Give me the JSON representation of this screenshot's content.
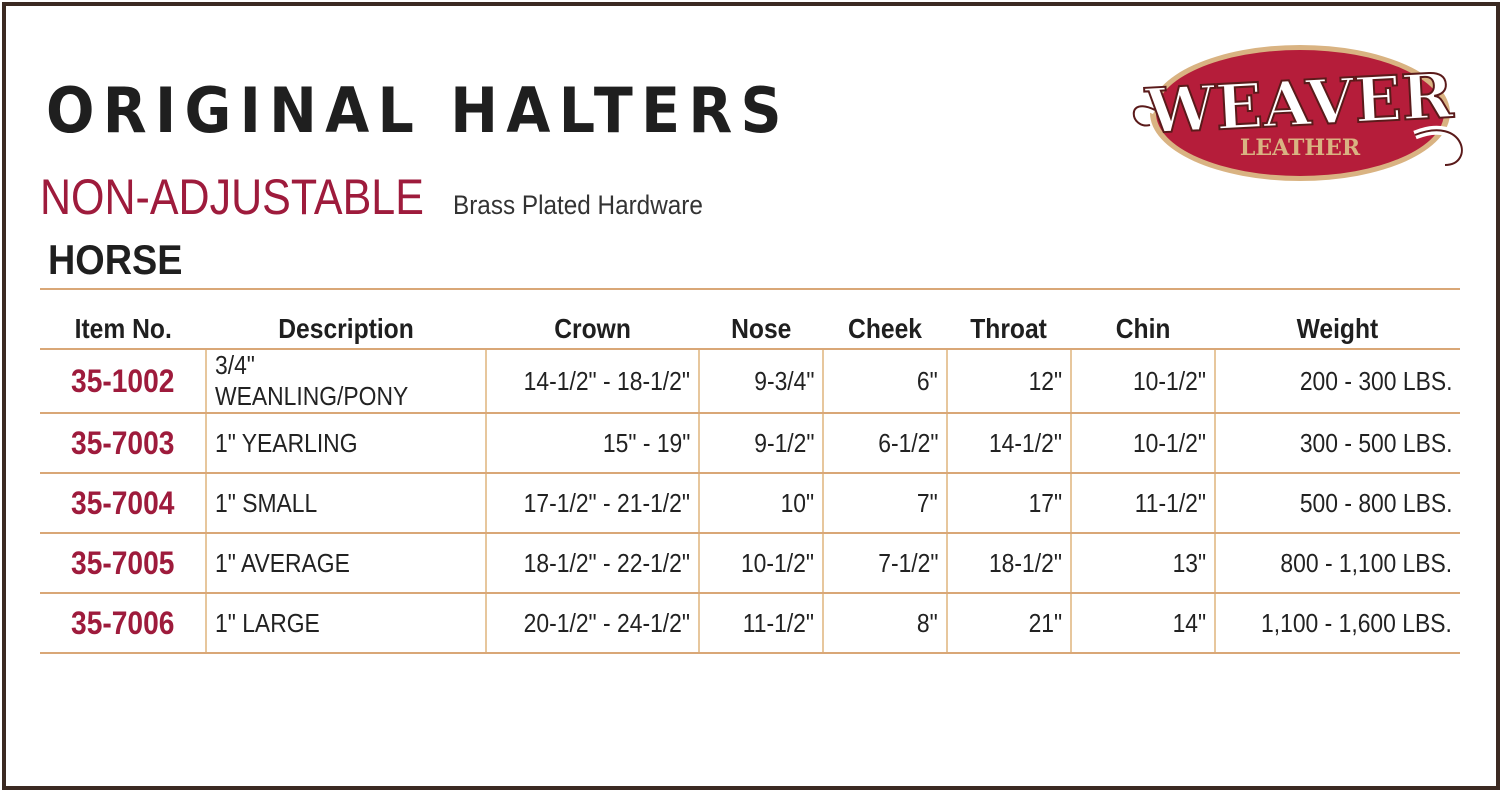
{
  "title": "ORIGINAL HALTERS",
  "subtitle": "NON-ADJUSTABLE",
  "hardware": "Brass Plated Hardware",
  "category": "HORSE",
  "logo": {
    "main": "WEAVER",
    "sub": "LEATHER",
    "colors": {
      "red": "#b51d3a",
      "tan": "#d9b382"
    }
  },
  "colors": {
    "accent": "#9e1b3c",
    "rule": "#d9a777"
  },
  "table": {
    "headers": [
      "Item No.",
      "Description",
      "Crown",
      "Nose",
      "Cheek",
      "Throat",
      "Chin",
      "Weight"
    ],
    "rows": [
      [
        "35-1002",
        "3/4\" WEANLING/PONY",
        "14-1/2\" - 18-1/2\"",
        "9-3/4\"",
        "6\"",
        "12\"",
        "10-1/2\"",
        "200 - 300 LBS."
      ],
      [
        "35-7003",
        "1\" YEARLING",
        "15\" - 19\"",
        "9-1/2\"",
        "6-1/2\"",
        "14-1/2\"",
        "10-1/2\"",
        "300 - 500 LBS."
      ],
      [
        "35-7004",
        "1\" SMALL",
        "17-1/2\" - 21-1/2\"",
        "10\"",
        "7\"",
        "17\"",
        "11-1/2\"",
        "500 - 800 LBS."
      ],
      [
        "35-7005",
        "1\" AVERAGE",
        "18-1/2\" - 22-1/2\"",
        "10-1/2\"",
        "7-1/2\"",
        "18-1/2\"",
        "13\"",
        "800 - 1,100 LBS."
      ],
      [
        "35-7006",
        "1\" LARGE",
        "20-1/2\" - 24-1/2\"",
        "11-1/2\"",
        "8\"",
        "21\"",
        "14\"",
        "1,100 - 1,600 LBS."
      ]
    ]
  }
}
